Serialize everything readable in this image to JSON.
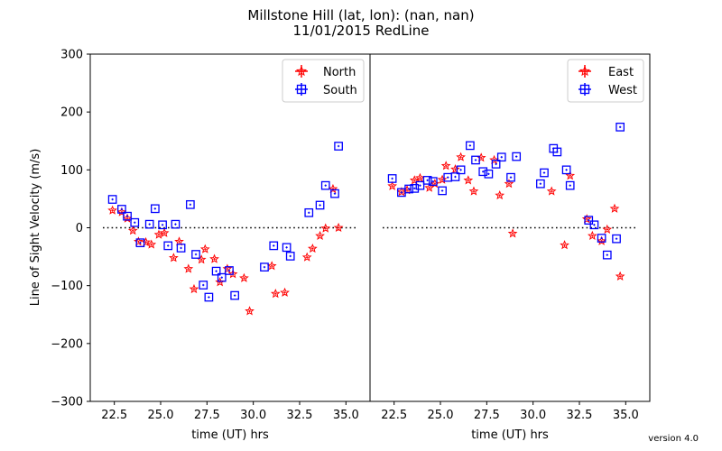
{
  "title_line1": "Millstone Hill  (lat, lon):  (nan, nan)",
  "title_line2": "11/01/2015 RedLine",
  "version": "version 4.0",
  "colors": {
    "north": "#ff0000",
    "south": "#0000ff",
    "east": "#ff0000",
    "west": "#0000ff"
  },
  "chart_data": [
    {
      "type": "scatter",
      "xlabel": "time (UT) hrs",
      "ylabel": "Line of Sight Velocity (m/s)",
      "xlim": [
        21.2,
        36.3
      ],
      "ylim": [
        -300,
        300
      ],
      "xticks": [
        "22.5",
        "25.0",
        "27.5",
        "30.0",
        "32.5",
        "35.0"
      ],
      "yticks": [
        "−300",
        "−200",
        "−100",
        "0",
        "100",
        "200",
        "300"
      ],
      "legend_position": "upper-right",
      "zero_line": true,
      "series": [
        {
          "name": "North",
          "marker": "star",
          "color": "#ff0000",
          "x": [
            22.4,
            22.9,
            23.2,
            23.5,
            23.8,
            24.2,
            24.5,
            24.9,
            25.2,
            25.7,
            26.0,
            26.5,
            26.8,
            27.2,
            27.4,
            27.9,
            28.2,
            28.6,
            28.9,
            29.5,
            29.8,
            31.0,
            31.2,
            31.7,
            32.9,
            33.2,
            33.6,
            33.9,
            34.3,
            34.6
          ],
          "y": [
            30,
            27,
            16,
            -5,
            -24,
            -25,
            -29,
            -12,
            -9,
            -52,
            -24,
            -71,
            -106,
            -55,
            -37,
            -54,
            -94,
            -71,
            -80,
            -87,
            -144,
            -66,
            -114,
            -112,
            -51,
            -36,
            -14,
            -1,
            67,
            0
          ]
        },
        {
          "name": "South",
          "marker": "square",
          "color": "#0000ff",
          "x": [
            22.4,
            22.9,
            23.2,
            23.6,
            23.9,
            24.4,
            24.7,
            25.1,
            25.4,
            25.8,
            26.1,
            26.6,
            26.9,
            27.3,
            27.6,
            28.0,
            28.3,
            28.7,
            29.0,
            30.6,
            31.1,
            31.8,
            32.0,
            33.0,
            33.6,
            33.9,
            34.4,
            34.6
          ],
          "y": [
            49,
            32,
            20,
            9,
            -26,
            6,
            33,
            5,
            -31,
            6,
            -35,
            40,
            -46,
            -99,
            -120,
            -75,
            -86,
            -74,
            -117,
            -68,
            -31,
            -34,
            -49,
            26,
            39,
            73,
            59,
            141
          ]
        }
      ]
    },
    {
      "type": "scatter",
      "xlabel": "time (UT) hrs",
      "ylabel": "",
      "xlim": [
        21.2,
        36.3
      ],
      "ylim": [
        -300,
        300
      ],
      "xticks": [
        "22.5",
        "25.0",
        "27.5",
        "30.0",
        "32.5",
        "35.0"
      ],
      "yticks": [],
      "legend_position": "upper-right",
      "zero_line": true,
      "series": [
        {
          "name": "East",
          "marker": "star",
          "color": "#ff0000",
          "x": [
            22.4,
            22.9,
            23.2,
            23.6,
            23.9,
            24.4,
            24.7,
            25.1,
            25.3,
            25.8,
            26.1,
            26.5,
            26.8,
            27.2,
            27.9,
            28.2,
            28.7,
            28.9,
            31.0,
            31.7,
            32.0,
            32.9,
            33.2,
            33.7,
            34.0,
            34.4,
            34.7
          ],
          "y": [
            72,
            62,
            65,
            82,
            86,
            69,
            76,
            83,
            107,
            101,
            122,
            82,
            63,
            121,
            117,
            56,
            76,
            -10,
            63,
            -30,
            90,
            15,
            -14,
            -23,
            -3,
            33,
            -84
          ]
        },
        {
          "name": "West",
          "marker": "square",
          "color": "#0000ff",
          "x": [
            22.4,
            22.9,
            23.3,
            23.6,
            23.9,
            24.3,
            24.6,
            25.1,
            25.4,
            25.8,
            26.1,
            26.6,
            26.9,
            27.3,
            27.6,
            28.0,
            28.3,
            28.8,
            29.1,
            30.4,
            30.6,
            31.1,
            31.3,
            31.8,
            32.0,
            33.0,
            33.3,
            33.7,
            34.0,
            34.5,
            34.7
          ],
          "y": [
            85,
            61,
            67,
            68,
            73,
            82,
            80,
            64,
            87,
            88,
            100,
            142,
            117,
            97,
            93,
            110,
            122,
            87,
            123,
            76,
            95,
            137,
            131,
            100,
            73,
            13,
            5,
            -18,
            -47,
            -19,
            174
          ]
        }
      ]
    }
  ]
}
